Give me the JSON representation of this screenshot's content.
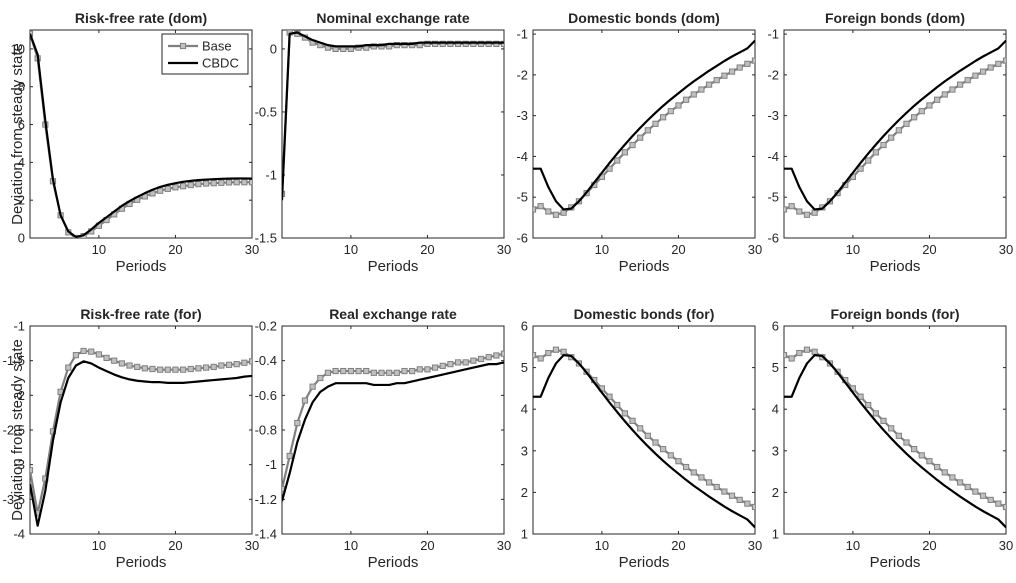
{
  "figure": {
    "ylabel": "Deviation from steady state",
    "legend": {
      "placement": "top-right of first panel",
      "entries": [
        {
          "label": "Base",
          "color": "#808080",
          "marker": "square"
        },
        {
          "label": "CBDC",
          "color": "#000000",
          "marker": "none"
        }
      ]
    }
  },
  "chart_data": [
    {
      "type": "line",
      "title": "Risk-free rate (dom)",
      "xlabel": "Periods",
      "ylabel": "Deviation from steady state",
      "xlim": [
        1,
        30
      ],
      "ylim": [
        0,
        11
      ],
      "xticks": [
        10,
        20,
        30
      ],
      "yticks": [
        0,
        2,
        4,
        6,
        8,
        10
      ],
      "x": [
        1,
        2,
        3,
        4,
        5,
        6,
        7,
        8,
        9,
        10,
        11,
        12,
        13,
        14,
        15,
        16,
        17,
        18,
        19,
        20,
        21,
        22,
        23,
        24,
        25,
        26,
        27,
        28,
        29,
        30
      ],
      "series": [
        {
          "name": "Base",
          "values": [
            10.8,
            9.5,
            6.0,
            3.0,
            1.2,
            0.3,
            0.0,
            0.1,
            0.35,
            0.65,
            0.95,
            1.25,
            1.55,
            1.8,
            2.02,
            2.2,
            2.36,
            2.5,
            2.6,
            2.68,
            2.74,
            2.8,
            2.85,
            2.88,
            2.9,
            2.92,
            2.94,
            2.95,
            2.95,
            2.95
          ]
        },
        {
          "name": "CBDC",
          "values": [
            10.8,
            9.7,
            6.2,
            3.1,
            1.2,
            0.35,
            0.05,
            0.15,
            0.45,
            0.8,
            1.1,
            1.4,
            1.7,
            1.95,
            2.17,
            2.37,
            2.55,
            2.7,
            2.81,
            2.9,
            2.97,
            3.02,
            3.06,
            3.09,
            3.11,
            3.13,
            3.14,
            3.15,
            3.15,
            3.14
          ]
        }
      ]
    },
    {
      "type": "line",
      "title": "Nominal exchange rate",
      "xlabel": "Periods",
      "ylabel": "",
      "xlim": [
        1,
        30
      ],
      "ylim": [
        -1.5,
        0.15
      ],
      "xticks": [
        10,
        20,
        30
      ],
      "yticks": [
        -1.5,
        -1,
        -0.5,
        0
      ],
      "x": [
        1,
        2,
        3,
        4,
        5,
        6,
        7,
        8,
        9,
        10,
        11,
        12,
        13,
        14,
        15,
        16,
        17,
        18,
        19,
        20,
        21,
        22,
        23,
        24,
        25,
        26,
        27,
        28,
        29,
        30
      ],
      "series": [
        {
          "name": "Base",
          "values": [
            -1.15,
            0.13,
            0.12,
            0.09,
            0.05,
            0.03,
            0.01,
            0.0,
            0.0,
            0.0,
            0.01,
            0.01,
            0.02,
            0.02,
            0.02,
            0.03,
            0.03,
            0.03,
            0.03,
            0.04,
            0.04,
            0.04,
            0.04,
            0.04,
            0.04,
            0.04,
            0.04,
            0.04,
            0.04,
            0.04
          ]
        },
        {
          "name": "CBDC",
          "values": [
            -1.2,
            0.12,
            0.13,
            0.1,
            0.07,
            0.05,
            0.03,
            0.02,
            0.02,
            0.02,
            0.02,
            0.03,
            0.03,
            0.03,
            0.04,
            0.04,
            0.04,
            0.04,
            0.05,
            0.05,
            0.05,
            0.05,
            0.05,
            0.05,
            0.05,
            0.05,
            0.05,
            0.05,
            0.05,
            0.05
          ]
        }
      ]
    },
    {
      "type": "line",
      "title": "Domestic bonds (dom)",
      "xlabel": "Periods",
      "ylabel": "",
      "xlim": [
        1,
        30
      ],
      "ylim": [
        -6,
        -0.9
      ],
      "xticks": [
        10,
        20,
        30
      ],
      "yticks": [
        -6,
        -5,
        -4,
        -3,
        -2,
        -1
      ],
      "x": [
        1,
        2,
        3,
        4,
        5,
        6,
        7,
        8,
        9,
        10,
        11,
        12,
        13,
        14,
        15,
        16,
        17,
        18,
        19,
        20,
        21,
        22,
        23,
        24,
        25,
        26,
        27,
        28,
        29,
        30
      ],
      "series": [
        {
          "name": "Base",
          "values": [
            -5.3,
            -5.22,
            -5.35,
            -5.43,
            -5.38,
            -5.25,
            -5.1,
            -4.9,
            -4.7,
            -4.5,
            -4.3,
            -4.1,
            -3.9,
            -3.72,
            -3.54,
            -3.36,
            -3.2,
            -3.04,
            -2.89,
            -2.75,
            -2.61,
            -2.48,
            -2.36,
            -2.24,
            -2.13,
            -2.02,
            -1.92,
            -1.82,
            -1.73,
            -1.65
          ]
        },
        {
          "name": "CBDC",
          "values": [
            -4.3,
            -4.3,
            -4.75,
            -5.1,
            -5.3,
            -5.28,
            -5.1,
            -4.88,
            -4.64,
            -4.4,
            -4.16,
            -3.93,
            -3.71,
            -3.5,
            -3.3,
            -3.11,
            -2.93,
            -2.76,
            -2.6,
            -2.45,
            -2.3,
            -2.16,
            -2.03,
            -1.9,
            -1.78,
            -1.66,
            -1.55,
            -1.45,
            -1.35,
            -1.16
          ]
        }
      ]
    },
    {
      "type": "line",
      "title": "Foreign bonds (dom)",
      "xlabel": "Periods",
      "ylabel": "",
      "xlim": [
        1,
        30
      ],
      "ylim": [
        -6,
        -0.9
      ],
      "xticks": [
        10,
        20,
        30
      ],
      "yticks": [
        -6,
        -5,
        -4,
        -3,
        -2,
        -1
      ],
      "x": [
        1,
        2,
        3,
        4,
        5,
        6,
        7,
        8,
        9,
        10,
        11,
        12,
        13,
        14,
        15,
        16,
        17,
        18,
        19,
        20,
        21,
        22,
        23,
        24,
        25,
        26,
        27,
        28,
        29,
        30
      ],
      "series": [
        {
          "name": "Base",
          "values": [
            -5.3,
            -5.22,
            -5.35,
            -5.43,
            -5.38,
            -5.25,
            -5.1,
            -4.9,
            -4.7,
            -4.5,
            -4.3,
            -4.1,
            -3.9,
            -3.72,
            -3.54,
            -3.36,
            -3.2,
            -3.04,
            -2.89,
            -2.75,
            -2.61,
            -2.48,
            -2.36,
            -2.24,
            -2.13,
            -2.02,
            -1.92,
            -1.82,
            -1.73,
            -1.65
          ]
        },
        {
          "name": "CBDC",
          "values": [
            -4.3,
            -4.3,
            -4.75,
            -5.1,
            -5.3,
            -5.28,
            -5.1,
            -4.88,
            -4.64,
            -4.4,
            -4.16,
            -3.93,
            -3.71,
            -3.5,
            -3.3,
            -3.11,
            -2.93,
            -2.76,
            -2.6,
            -2.45,
            -2.3,
            -2.16,
            -2.03,
            -1.9,
            -1.78,
            -1.66,
            -1.55,
            -1.45,
            -1.35,
            -1.16
          ]
        }
      ]
    },
    {
      "type": "line",
      "title": "Risk-free rate (for)",
      "xlabel": "Periods",
      "ylabel": "Deviation from steady state",
      "xlim": [
        1,
        30
      ],
      "ylim": [
        -4,
        -1
      ],
      "xticks": [
        10,
        20,
        30
      ],
      "yticks": [
        -4,
        -3.5,
        -3,
        -2.5,
        -2,
        -1.5,
        -1
      ],
      "x": [
        1,
        2,
        3,
        4,
        5,
        6,
        7,
        8,
        9,
        10,
        11,
        12,
        13,
        14,
        15,
        16,
        17,
        18,
        19,
        20,
        21,
        22,
        23,
        24,
        25,
        26,
        27,
        28,
        29,
        30
      ],
      "series": [
        {
          "name": "Base",
          "values": [
            -3.08,
            -3.7,
            -3.2,
            -2.52,
            -1.95,
            -1.6,
            -1.42,
            -1.36,
            -1.37,
            -1.41,
            -1.46,
            -1.5,
            -1.54,
            -1.57,
            -1.59,
            -1.61,
            -1.62,
            -1.63,
            -1.63,
            -1.63,
            -1.63,
            -1.62,
            -1.61,
            -1.6,
            -1.59,
            -1.57,
            -1.56,
            -1.55,
            -1.53,
            -1.51
          ]
        },
        {
          "name": "CBDC",
          "values": [
            -3.28,
            -3.88,
            -3.38,
            -2.65,
            -2.1,
            -1.75,
            -1.57,
            -1.51,
            -1.54,
            -1.6,
            -1.65,
            -1.7,
            -1.74,
            -1.77,
            -1.79,
            -1.8,
            -1.81,
            -1.81,
            -1.82,
            -1.82,
            -1.82,
            -1.81,
            -1.8,
            -1.79,
            -1.78,
            -1.77,
            -1.76,
            -1.75,
            -1.73,
            -1.72
          ]
        }
      ]
    },
    {
      "type": "line",
      "title": "Real exchange rate",
      "xlabel": "Periods",
      "ylabel": "",
      "xlim": [
        1,
        30
      ],
      "ylim": [
        -1.4,
        -0.2
      ],
      "xticks": [
        10,
        20,
        30
      ],
      "yticks": [
        -1.4,
        -1.2,
        -1,
        -0.8,
        -0.6,
        -0.4,
        -0.2
      ],
      "x": [
        1,
        2,
        3,
        4,
        5,
        6,
        7,
        8,
        9,
        10,
        11,
        12,
        13,
        14,
        15,
        16,
        17,
        18,
        19,
        20,
        21,
        22,
        23,
        24,
        25,
        26,
        27,
        28,
        29,
        30
      ],
      "series": [
        {
          "name": "Base",
          "values": [
            -1.14,
            -0.95,
            -0.76,
            -0.63,
            -0.55,
            -0.5,
            -0.47,
            -0.46,
            -0.46,
            -0.46,
            -0.46,
            -0.46,
            -0.47,
            -0.47,
            -0.47,
            -0.47,
            -0.46,
            -0.46,
            -0.45,
            -0.45,
            -0.44,
            -0.43,
            -0.42,
            -0.41,
            -0.41,
            -0.4,
            -0.39,
            -0.38,
            -0.37,
            -0.36
          ]
        },
        {
          "name": "CBDC",
          "values": [
            -1.21,
            -1.05,
            -0.87,
            -0.74,
            -0.64,
            -0.58,
            -0.55,
            -0.53,
            -0.53,
            -0.53,
            -0.53,
            -0.53,
            -0.54,
            -0.54,
            -0.54,
            -0.53,
            -0.53,
            -0.52,
            -0.51,
            -0.5,
            -0.49,
            -0.48,
            -0.47,
            -0.46,
            -0.45,
            -0.44,
            -0.43,
            -0.42,
            -0.42,
            -0.41
          ]
        }
      ]
    },
    {
      "type": "line",
      "title": "Domestic bonds (for)",
      "xlabel": "Periods",
      "ylabel": "",
      "xlim": [
        1,
        30
      ],
      "ylim": [
        1,
        6
      ],
      "xticks": [
        10,
        20,
        30
      ],
      "yticks": [
        1,
        2,
        3,
        4,
        5,
        6
      ],
      "x": [
        1,
        2,
        3,
        4,
        5,
        6,
        7,
        8,
        9,
        10,
        11,
        12,
        13,
        14,
        15,
        16,
        17,
        18,
        19,
        20,
        21,
        22,
        23,
        24,
        25,
        26,
        27,
        28,
        29,
        30
      ],
      "series": [
        {
          "name": "Base",
          "values": [
            5.3,
            5.22,
            5.35,
            5.43,
            5.38,
            5.25,
            5.1,
            4.9,
            4.7,
            4.5,
            4.3,
            4.1,
            3.9,
            3.72,
            3.54,
            3.36,
            3.2,
            3.04,
            2.89,
            2.75,
            2.61,
            2.48,
            2.36,
            2.24,
            2.13,
            2.02,
            1.92,
            1.82,
            1.73,
            1.65
          ]
        },
        {
          "name": "CBDC",
          "values": [
            4.3,
            4.3,
            4.75,
            5.1,
            5.3,
            5.28,
            5.1,
            4.88,
            4.64,
            4.4,
            4.16,
            3.93,
            3.71,
            3.5,
            3.3,
            3.11,
            2.93,
            2.76,
            2.6,
            2.45,
            2.3,
            2.16,
            2.03,
            1.9,
            1.78,
            1.66,
            1.55,
            1.45,
            1.35,
            1.16
          ]
        }
      ]
    },
    {
      "type": "line",
      "title": "Foreign bonds (for)",
      "xlabel": "Periods",
      "ylabel": "",
      "xlim": [
        1,
        30
      ],
      "ylim": [
        1,
        6
      ],
      "xticks": [
        10,
        20,
        30
      ],
      "yticks": [
        1,
        2,
        3,
        4,
        5,
        6
      ],
      "x": [
        1,
        2,
        3,
        4,
        5,
        6,
        7,
        8,
        9,
        10,
        11,
        12,
        13,
        14,
        15,
        16,
        17,
        18,
        19,
        20,
        21,
        22,
        23,
        24,
        25,
        26,
        27,
        28,
        29,
        30
      ],
      "series": [
        {
          "name": "Base",
          "values": [
            5.3,
            5.22,
            5.35,
            5.43,
            5.38,
            5.25,
            5.1,
            4.9,
            4.7,
            4.5,
            4.3,
            4.1,
            3.9,
            3.72,
            3.54,
            3.36,
            3.2,
            3.04,
            2.89,
            2.75,
            2.61,
            2.48,
            2.36,
            2.24,
            2.13,
            2.02,
            1.92,
            1.82,
            1.73,
            1.65
          ]
        },
        {
          "name": "CBDC",
          "values": [
            4.3,
            4.3,
            4.75,
            5.1,
            5.3,
            5.28,
            5.1,
            4.88,
            4.64,
            4.4,
            4.16,
            3.93,
            3.71,
            3.5,
            3.3,
            3.11,
            2.93,
            2.76,
            2.6,
            2.45,
            2.3,
            2.16,
            2.03,
            1.9,
            1.78,
            1.66,
            1.55,
            1.45,
            1.35,
            1.16
          ]
        }
      ]
    }
  ]
}
